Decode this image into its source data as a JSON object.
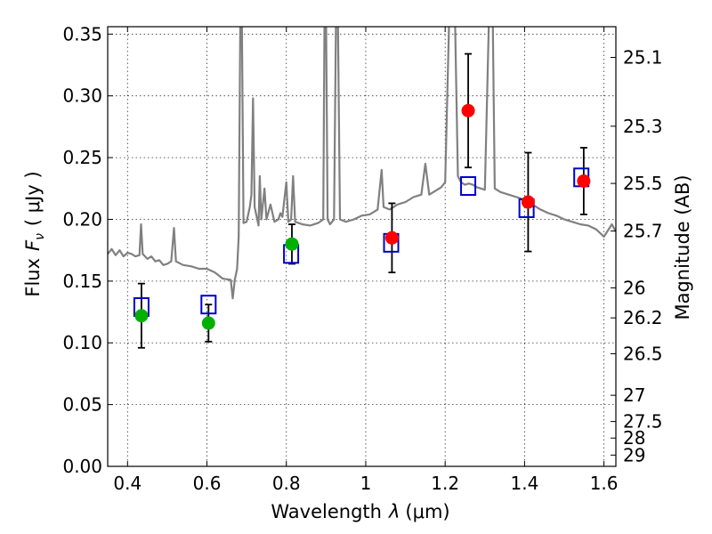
{
  "chart_data": {
    "type": "scatter",
    "xlabel_text": "Wavelength",
    "xlabel_symbol": "λ",
    "xlabel_unit": "(μm)",
    "ylabel_text": "Flux",
    "ylabel_symbol": "F",
    "ylabel_subscript": "ν",
    "ylabel_unit": "( μJy )",
    "ylabel_right": "Magnitude (AB)",
    "xlim": [
      0.35,
      1.63
    ],
    "ylim": [
      0.0,
      0.356
    ],
    "x_ticks": [
      {
        "value": 0.4,
        "label": "0.4"
      },
      {
        "value": 0.6,
        "label": "0.6"
      },
      {
        "value": 0.8,
        "label": "0.8"
      },
      {
        "value": 1.0,
        "label": "1"
      },
      {
        "value": 1.2,
        "label": "1.2"
      },
      {
        "value": 1.4,
        "label": "1.4"
      },
      {
        "value": 1.6,
        "label": "1.6"
      }
    ],
    "y_ticks": [
      {
        "value": 0.0,
        "label": "0.00"
      },
      {
        "value": 0.05,
        "label": "0.05"
      },
      {
        "value": 0.1,
        "label": "0.10"
      },
      {
        "value": 0.15,
        "label": "0.15"
      },
      {
        "value": 0.2,
        "label": "0.20"
      },
      {
        "value": 0.25,
        "label": "0.25"
      },
      {
        "value": 0.3,
        "label": "0.30"
      },
      {
        "value": 0.35,
        "label": "0.35"
      }
    ],
    "right_ticks": [
      {
        "mag": 25.1,
        "label": "25.1"
      },
      {
        "mag": 25.3,
        "label": "25.3"
      },
      {
        "mag": 25.5,
        "label": "25.5"
      },
      {
        "mag": 25.7,
        "label": "25.7"
      },
      {
        "mag": 26.0,
        "label": "26"
      },
      {
        "mag": 26.2,
        "label": "26.2"
      },
      {
        "mag": 26.5,
        "label": "26.5"
      },
      {
        "mag": 27.0,
        "label": "27"
      },
      {
        "mag": 27.5,
        "label": "27.5"
      },
      {
        "mag": 28.0,
        "label": "28"
      },
      {
        "mag": 29.0,
        "label": "29"
      }
    ],
    "grid": true,
    "colors": {
      "spectrum": "#808080",
      "model": "#0000cc",
      "optical": "#00b000",
      "nir": "#ff0000",
      "errorbar": "#000000"
    },
    "series": [
      {
        "name": "model spectrum",
        "kind": "line",
        "points": [
          [
            0.35,
            0.172
          ],
          [
            0.36,
            0.176
          ],
          [
            0.37,
            0.171
          ],
          [
            0.38,
            0.175
          ],
          [
            0.39,
            0.17
          ],
          [
            0.4,
            0.173
          ],
          [
            0.41,
            0.172
          ],
          [
            0.42,
            0.17
          ],
          [
            0.43,
            0.171
          ],
          [
            0.434,
            0.196
          ],
          [
            0.438,
            0.172
          ],
          [
            0.45,
            0.168
          ],
          [
            0.46,
            0.17
          ],
          [
            0.47,
            0.166
          ],
          [
            0.48,
            0.167
          ],
          [
            0.49,
            0.163
          ],
          [
            0.5,
            0.164
          ],
          [
            0.51,
            0.166
          ],
          [
            0.517,
            0.193
          ],
          [
            0.522,
            0.166
          ],
          [
            0.54,
            0.163
          ],
          [
            0.56,
            0.162
          ],
          [
            0.58,
            0.16
          ],
          [
            0.6,
            0.16
          ],
          [
            0.62,
            0.157
          ],
          [
            0.64,
            0.152
          ],
          [
            0.66,
            0.151
          ],
          [
            0.665,
            0.136
          ],
          [
            0.67,
            0.151
          ],
          [
            0.676,
            0.16
          ],
          [
            0.68,
            0.186
          ],
          [
            0.684,
            0.36
          ],
          [
            0.688,
            0.36
          ],
          [
            0.692,
            0.197
          ],
          [
            0.7,
            0.198
          ],
          [
            0.708,
            0.21
          ],
          [
            0.712,
            0.22
          ],
          [
            0.716,
            0.298
          ],
          [
            0.72,
            0.21
          ],
          [
            0.73,
            0.195
          ],
          [
            0.733,
            0.235
          ],
          [
            0.737,
            0.2
          ],
          [
            0.745,
            0.225
          ],
          [
            0.75,
            0.2
          ],
          [
            0.76,
            0.212
          ],
          [
            0.77,
            0.198
          ],
          [
            0.78,
            0.2
          ],
          [
            0.785,
            0.205
          ],
          [
            0.79,
            0.202
          ],
          [
            0.8,
            0.23
          ],
          [
            0.805,
            0.198
          ],
          [
            0.812,
            0.2
          ],
          [
            0.817,
            0.235
          ],
          [
            0.822,
            0.198
          ],
          [
            0.84,
            0.196
          ],
          [
            0.86,
            0.195
          ],
          [
            0.88,
            0.197
          ],
          [
            0.893,
            0.2
          ],
          [
            0.896,
            0.36
          ],
          [
            0.9,
            0.36
          ],
          [
            0.904,
            0.2
          ],
          [
            0.91,
            0.196
          ],
          [
            0.92,
            0.2
          ],
          [
            0.925,
            0.36
          ],
          [
            0.93,
            0.36
          ],
          [
            0.935,
            0.2
          ],
          [
            0.95,
            0.198
          ],
          [
            0.97,
            0.2
          ],
          [
            0.99,
            0.203
          ],
          [
            1.01,
            0.204
          ],
          [
            1.03,
            0.208
          ],
          [
            1.04,
            0.24
          ],
          [
            1.045,
            0.21
          ],
          [
            1.06,
            0.208
          ],
          [
            1.08,
            0.212
          ],
          [
            1.1,
            0.214
          ],
          [
            1.12,
            0.218
          ],
          [
            1.14,
            0.22
          ],
          [
            1.15,
            0.245
          ],
          [
            1.16,
            0.22
          ],
          [
            1.17,
            0.222
          ],
          [
            1.18,
            0.224
          ],
          [
            1.19,
            0.226
          ],
          [
            1.2,
            0.23
          ],
          [
            1.21,
            0.36
          ],
          [
            1.225,
            0.36
          ],
          [
            1.232,
            0.235
          ],
          [
            1.24,
            0.23
          ],
          [
            1.25,
            0.228
          ],
          [
            1.26,
            0.229
          ],
          [
            1.27,
            0.228
          ],
          [
            1.28,
            0.226
          ],
          [
            1.3,
            0.224
          ],
          [
            1.31,
            0.36
          ],
          [
            1.32,
            0.36
          ],
          [
            1.325,
            0.225
          ],
          [
            1.34,
            0.222
          ],
          [
            1.36,
            0.22
          ],
          [
            1.38,
            0.218
          ],
          [
            1.4,
            0.216
          ],
          [
            1.42,
            0.212
          ],
          [
            1.44,
            0.208
          ],
          [
            1.46,
            0.205
          ],
          [
            1.48,
            0.203
          ],
          [
            1.5,
            0.2
          ],
          [
            1.52,
            0.198
          ],
          [
            1.54,
            0.196
          ],
          [
            1.56,
            0.195
          ],
          [
            1.58,
            0.192
          ],
          [
            1.6,
            0.186
          ],
          [
            1.62,
            0.196
          ],
          [
            1.63,
            0.19
          ]
        ]
      },
      {
        "name": "model photometry",
        "kind": "square",
        "x": [
          0.435,
          0.604,
          0.812,
          1.064,
          1.258,
          1.405,
          1.543
        ],
        "y": [
          0.129,
          0.131,
          0.172,
          0.181,
          0.227,
          0.209,
          0.234
        ]
      },
      {
        "name": "optical photometry",
        "kind": "circle",
        "x": [
          0.435,
          0.604,
          0.814
        ],
        "y": [
          0.122,
          0.116,
          0.18
        ],
        "err": [
          0.026,
          0.015,
          0.016
        ]
      },
      {
        "name": "near-infrared photometry",
        "kind": "circle",
        "x": [
          1.066,
          1.258,
          1.409,
          1.549
        ],
        "y": [
          0.185,
          0.288,
          0.214,
          0.231
        ],
        "err": [
          0.028,
          0.046,
          0.04,
          0.027
        ]
      }
    ]
  }
}
